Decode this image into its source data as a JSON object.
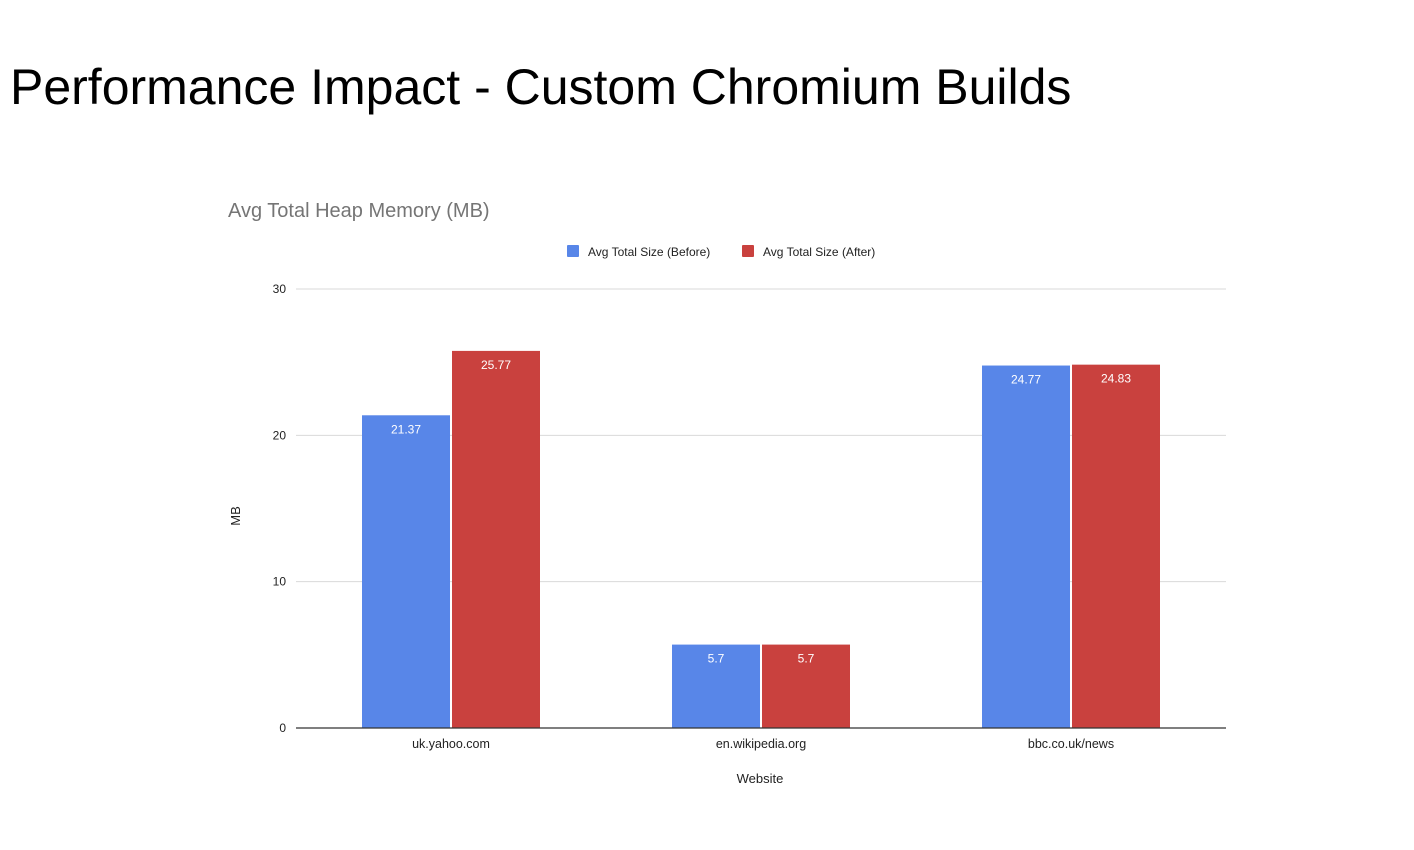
{
  "slide": {
    "title": "Performance Impact - Custom Chromium Builds"
  },
  "chart_data": {
    "type": "bar",
    "title": "Avg Total Heap Memory (MB)",
    "xlabel": "Website",
    "ylabel": "MB",
    "categories": [
      "uk.yahoo.com",
      "en.wikipedia.org",
      "bbc.co.uk/news"
    ],
    "series": [
      {
        "name": "Avg Total Size (Before)",
        "color": "#5886e8",
        "values": [
          21.37,
          5.7,
          24.77
        ]
      },
      {
        "name": "Avg Total Size (After)",
        "color": "#c9413e",
        "values": [
          25.77,
          5.7,
          24.83
        ]
      }
    ],
    "ylim": [
      0,
      30
    ],
    "yticks": [
      0,
      10,
      20,
      30
    ],
    "grid": true,
    "legend_position": "top",
    "data_labels": true
  }
}
